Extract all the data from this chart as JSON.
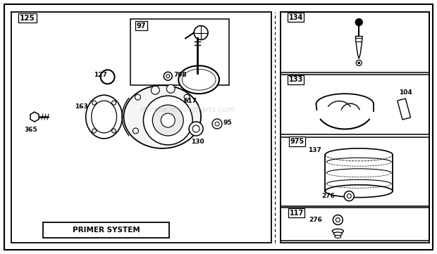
{
  "bg_color": "#ffffff",
  "watermark": "eReplacementParts.com",
  "watermark_color": "#c8c8c8",
  "main_label": "125",
  "primer_label": "PRIMER SYSTEM",
  "box97_label": "97",
  "label_708": "708",
  "label_163": "163",
  "label_127": "127",
  "label_130": "130",
  "label_95": "95",
  "label_617": "617",
  "label_365": "365",
  "label_134": "134",
  "label_133": "133",
  "label_104": "104",
  "label_975": "975",
  "label_137": "137",
  "label_276a": "276",
  "label_117": "117",
  "label_276b": "276"
}
